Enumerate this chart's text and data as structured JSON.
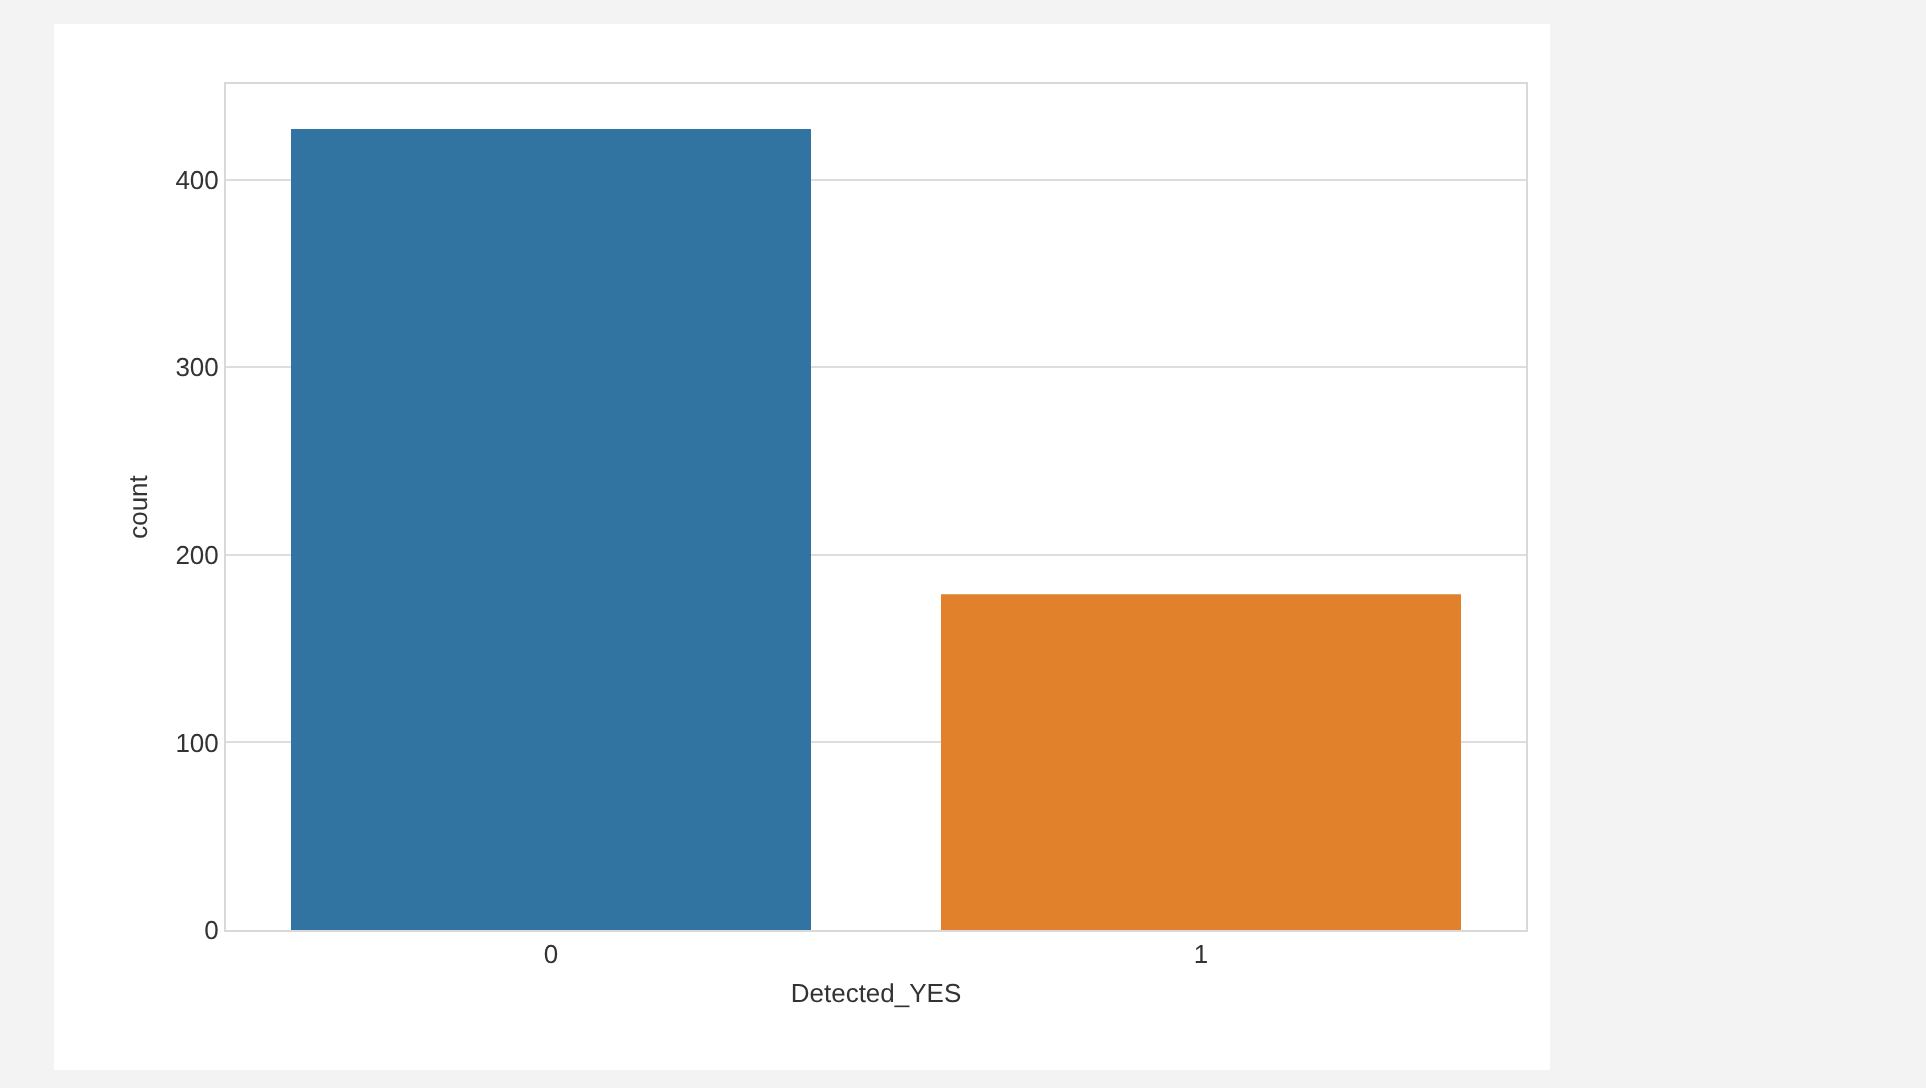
{
  "chart_data": {
    "type": "bar",
    "categories": [
      "0",
      "1"
    ],
    "colors": [
      "#3274a1",
      "#e1812c"
    ],
    "values": [
      427,
      179
    ],
    "xlabel": "Detected_YES",
    "ylabel": "count",
    "ylim": [
      0,
      451
    ],
    "yticks": [
      0,
      100,
      200,
      300,
      400
    ],
    "grid": "y"
  }
}
